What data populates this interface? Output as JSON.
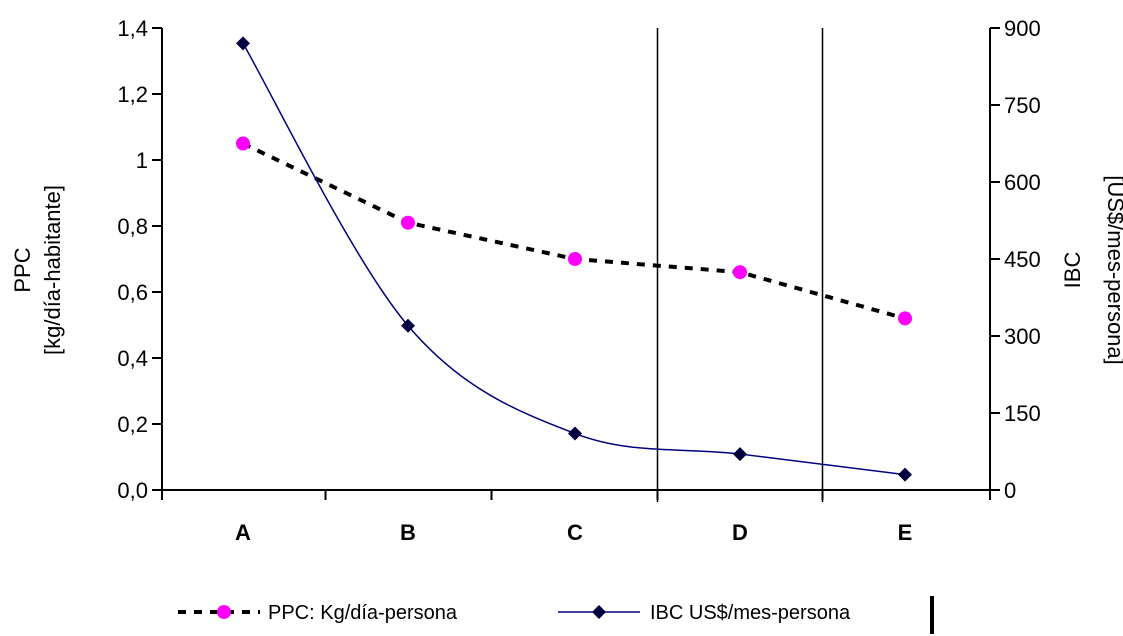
{
  "chart_data": {
    "type": "line",
    "categories": [
      "A",
      "B",
      "C",
      "D",
      "E"
    ],
    "left_axis": {
      "title_line1": "PPC",
      "title_line2": "[kg/día-habitante]",
      "ylim": [
        0.0,
        1.4
      ],
      "ticks": [
        0.0,
        0.2,
        0.4,
        0.6,
        0.8,
        1.0,
        1.2,
        1.4
      ],
      "tick_labels": [
        "0,0",
        "0,2",
        "0,4",
        "0,6",
        "0,8",
        "1",
        "1,2",
        "1,4"
      ]
    },
    "right_axis": {
      "title_line1": "IBC",
      "title_line2": "[US$/mes-persona]",
      "ylim": [
        0,
        900
      ],
      "ticks": [
        0,
        150,
        300,
        450,
        600,
        750,
        900
      ],
      "tick_labels": [
        "0",
        "150",
        "300",
        "450",
        "600",
        "750",
        "900"
      ]
    },
    "vertical_lines_between": [
      [
        "C",
        "D"
      ],
      [
        "D",
        "E"
      ]
    ],
    "series": [
      {
        "name": "PPC: Kg/día-persona",
        "axis": "left",
        "style": "dotted",
        "line_color": "#000000",
        "marker_color": "#ff00ff",
        "marker": "circle",
        "values": [
          1.05,
          0.81,
          0.7,
          0.66,
          0.52
        ]
      },
      {
        "name": "IBC US$/mes-persona",
        "axis": "right",
        "style": "solid",
        "line_color": "#000080",
        "marker_color": "#000040",
        "marker": "diamond",
        "values": [
          870,
          320,
          110,
          70,
          30
        ]
      }
    ]
  }
}
